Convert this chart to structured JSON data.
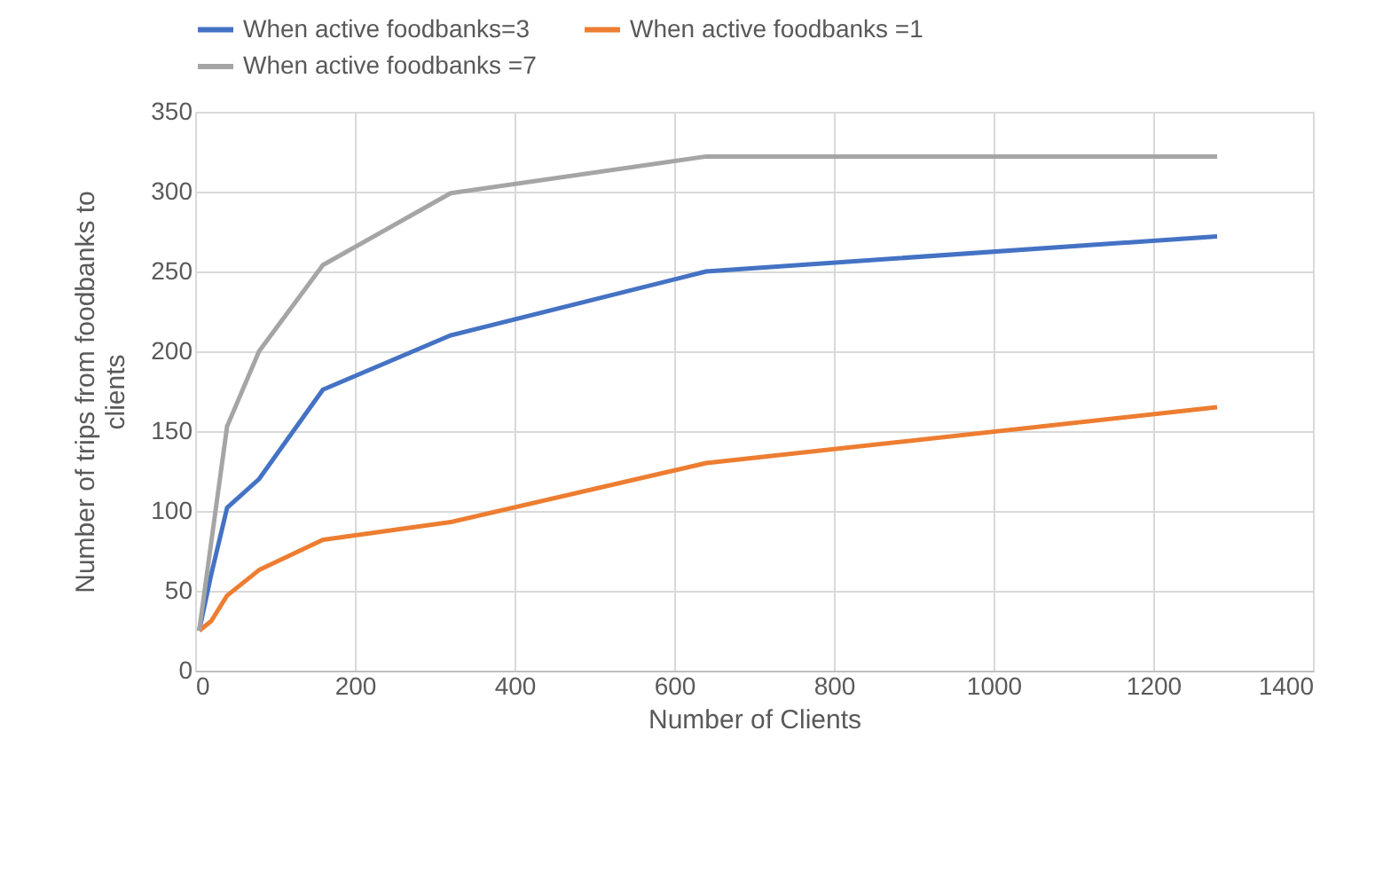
{
  "chart_data": {
    "type": "line",
    "xlabel": "Number  of Clients",
    "ylabel": "Number  of trips from foodbanks to clients",
    "x": [
      5,
      20,
      40,
      80,
      160,
      320,
      640,
      1280
    ],
    "series": [
      {
        "name": "When active foodbanks=3",
        "color": "#4472c4",
        "values": [
          25,
          60,
          102,
          120,
          176,
          210,
          250,
          272
        ]
      },
      {
        "name": "When active foodbanks =1",
        "color": "#ed7d31",
        "values": [
          25,
          31,
          47,
          63,
          82,
          93,
          130,
          165
        ]
      },
      {
        "name": "When active foodbanks =7",
        "color": "#a5a5a5",
        "values": [
          25,
          80,
          153,
          200,
          254,
          299,
          322,
          322
        ]
      }
    ],
    "xlim": [
      0,
      1400
    ],
    "xticks": [
      0,
      200,
      400,
      600,
      800,
      1000,
      1200,
      1400
    ],
    "ylim": [
      0,
      350
    ],
    "yticks": [
      0,
      50,
      100,
      150,
      200,
      250,
      300,
      350
    ],
    "grid": true,
    "legend": "top",
    "marker": "none",
    "line_style": "solid"
  }
}
